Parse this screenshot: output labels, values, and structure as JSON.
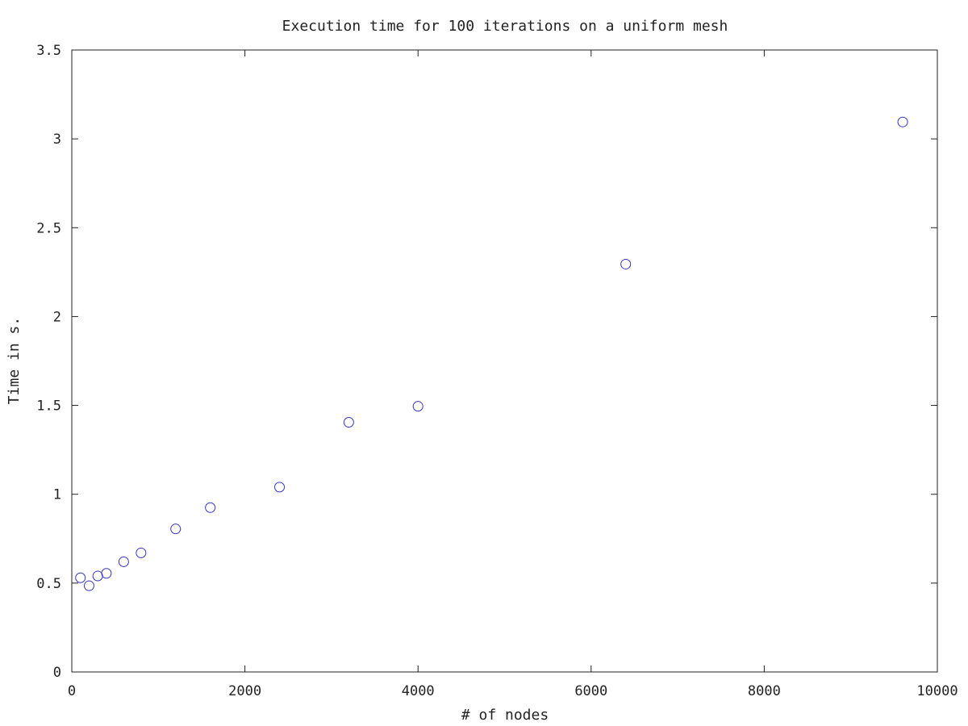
{
  "chart_data": {
    "type": "scatter",
    "title": "Execution time for 100 iterations on a uniform mesh",
    "xlabel": "# of nodes",
    "ylabel": "Time in s.",
    "xlim": [
      0,
      10000
    ],
    "ylim": [
      0,
      3.5
    ],
    "x_ticks": [
      "0",
      "2000",
      "4000",
      "6000",
      "8000",
      "10000"
    ],
    "y_ticks": [
      "0",
      "0.5",
      "1",
      "1.5",
      "2",
      "2.5",
      "3",
      "3.5"
    ],
    "grid": false,
    "legend": "none",
    "marker": "open-circle",
    "series": [
      {
        "color": "#3333cc",
        "points": [
          {
            "x": 100,
            "y": 0.53
          },
          {
            "x": 200,
            "y": 0.485
          },
          {
            "x": 300,
            "y": 0.54
          },
          {
            "x": 400,
            "y": 0.555
          },
          {
            "x": 600,
            "y": 0.62
          },
          {
            "x": 800,
            "y": 0.67
          },
          {
            "x": 1200,
            "y": 0.805
          },
          {
            "x": 1600,
            "y": 0.925
          },
          {
            "x": 2400,
            "y": 1.04
          },
          {
            "x": 3200,
            "y": 1.405
          },
          {
            "x": 4000,
            "y": 1.495
          },
          {
            "x": 6400,
            "y": 2.295
          },
          {
            "x": 9600,
            "y": 3.095
          }
        ]
      }
    ]
  }
}
